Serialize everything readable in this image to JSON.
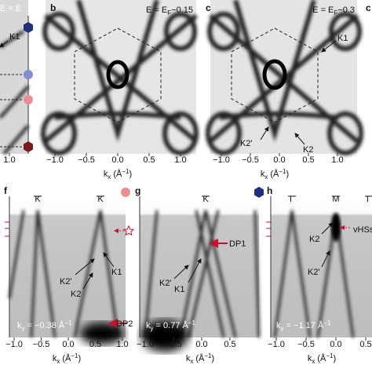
{
  "panels": {
    "a": {
      "energy": "E = E",
      "annotation": "K1",
      "ticks": [
        "1.0"
      ]
    },
    "b": {
      "letter": "b",
      "energy": {
        "main": "E = E",
        "sub": "F",
        "offset": "−0.15"
      },
      "ticks": [
        "−1.0",
        "−0.5",
        "0.0",
        "0.5",
        "1.0"
      ]
    },
    "c": {
      "letter": "c",
      "energy": {
        "main": "E = E",
        "sub": "F",
        "offset": "−0.3"
      },
      "annotations": [
        "K1",
        "K2'",
        "K2"
      ],
      "ticks": [
        "−1.0",
        "−0.5",
        "0.0",
        "0.5",
        "1.0"
      ]
    },
    "d": {
      "letter": "c"
    },
    "f": {
      "letter": "f",
      "points": [
        "K",
        "K"
      ],
      "annotations": [
        "K1",
        "K2'",
        "K2",
        "DP2"
      ],
      "momentum": {
        "main": "k",
        "sub": "y",
        "value": " = −0.38 Å",
        "exp": "−1"
      },
      "ticks": [
        "−1.0",
        "−0.5",
        "0.0",
        "0.5",
        "1.0"
      ]
    },
    "g": {
      "letter": "g",
      "points": [
        "K"
      ],
      "annotations": [
        "DP1",
        "K2'",
        "K1"
      ],
      "momentum": {
        "main": "k",
        "sub": "y",
        "value": " = 0.77 Å",
        "exp": "−1"
      },
      "ticks": [
        "−1.0",
        "−0.5",
        "0.0",
        "0.5"
      ]
    },
    "h": {
      "letter": "h",
      "points": [
        "Γ",
        "M",
        "Γ"
      ],
      "annotations": [
        "K2",
        "vHSs",
        "K2'"
      ],
      "momentum": {
        "main": "k",
        "sub": "y",
        "value": " = −1.17 Å",
        "exp": "−1"
      },
      "ticks": [
        "−1.0",
        "−0.5",
        "0.0",
        "0.5"
      ]
    }
  },
  "axis_label": {
    "main": "k",
    "sub": "x",
    "unit": " (Å",
    "exp": "−1",
    "close": ")"
  }
}
